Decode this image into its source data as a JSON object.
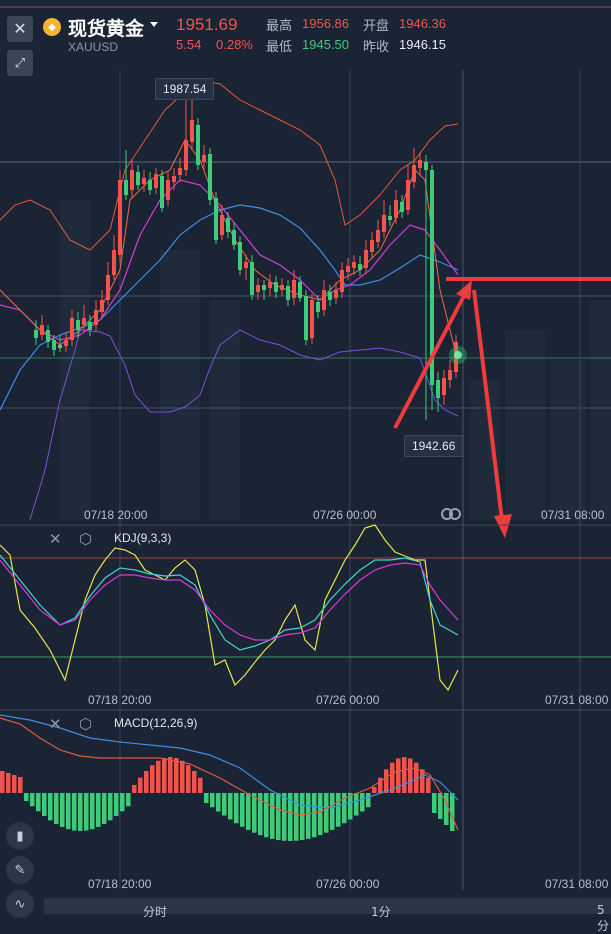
{
  "header": {
    "close_icon": "close-icon",
    "title": "现货黄金",
    "symbol": "XAUUSD",
    "price": "1951.69",
    "change": "5.54",
    "change_pct": "0.28%",
    "high_label": "最高",
    "high": "1956.86",
    "low_label": "最低",
    "low": "1945.50",
    "open_label": "开盘",
    "open": "1946.36",
    "prev_close_label": "昨收",
    "prev_close": "1946.15",
    "colors": {
      "up": "#f2534d",
      "down": "#3ecb7a"
    }
  },
  "main_chart": {
    "max_label": "1987.54",
    "min_label": "1942.66",
    "dates": [
      "07/18 20:00",
      "07/26 00:00",
      "07/31 08:00"
    ]
  },
  "kdj": {
    "label": "KDJ(9,3,3)",
    "dates": [
      "07/18 20:00",
      "07/26 00:00",
      "07/31 08:00"
    ]
  },
  "macd": {
    "label": "MACD(12,26,9)",
    "dates": [
      "07/18 20:00",
      "07/26 00:00",
      "07/31 08:00"
    ]
  },
  "bottom_tabs": [
    "分时",
    "1分",
    "5分"
  ],
  "side_tools": [
    "candlestick-icon",
    "pencil-icon",
    "line-chart-icon"
  ]
}
